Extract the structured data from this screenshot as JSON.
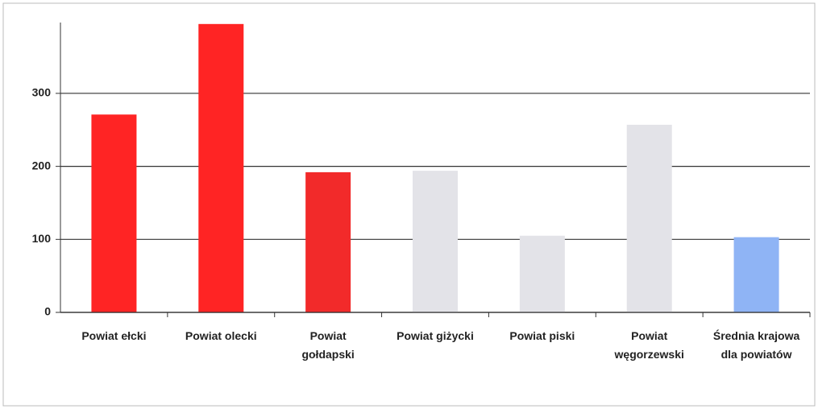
{
  "chart_data": {
    "type": "bar",
    "categories": [
      "Powiat ełcki",
      "Powiat olecki",
      "Powiat gołdapski",
      "Powiat giżycki",
      "Powiat piski",
      "Powiat węgorzewski",
      "Średnia krajowa dla powiatów"
    ],
    "values": [
      271,
      395,
      192,
      194,
      105,
      257,
      103
    ],
    "colors": [
      "#ff2424",
      "#ff2424",
      "#f22a2a",
      "#e3e3e8",
      "#e3e3e8",
      "#e3e3e8",
      "#8fb4f5"
    ],
    "ylim": [
      0,
      397
    ],
    "yticks": [
      0,
      100,
      200,
      300
    ],
    "grid": true
  }
}
